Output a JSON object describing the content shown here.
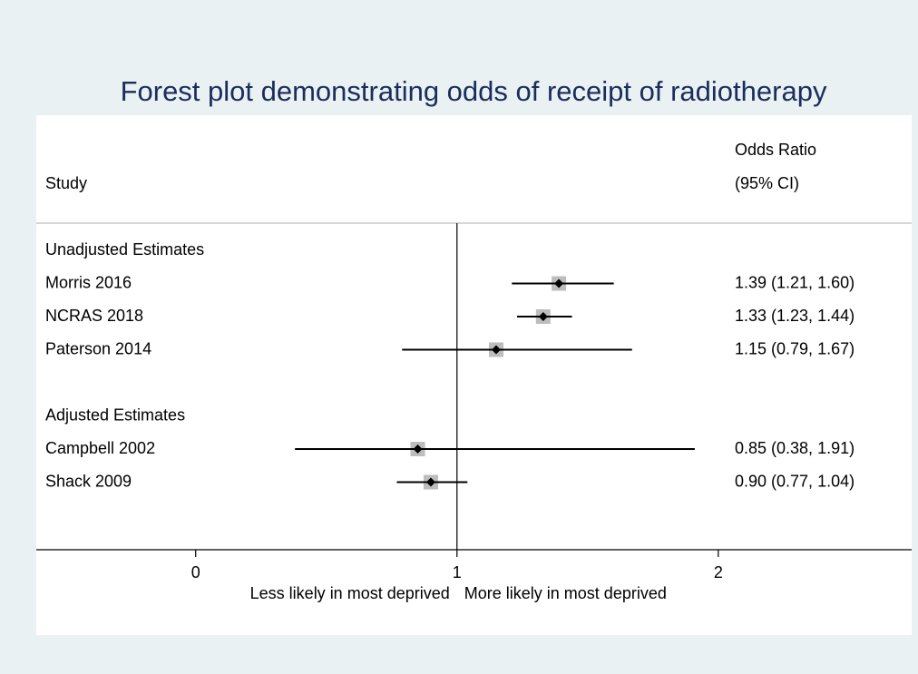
{
  "chart_data": {
    "type": "forest",
    "title": "Forest plot demonstrating odds of receipt of radiotherapy",
    "study_header": "Study",
    "estimate_header": [
      "Odds Ratio",
      "(95% CI)"
    ],
    "groups": [
      {
        "name": "Unadjusted Estimates",
        "studies": [
          {
            "name": "Morris 2016",
            "value": 1.39,
            "lower": 1.21,
            "upper": 1.6,
            "value_label": "1.39 (1.21, 1.60)"
          },
          {
            "name": "NCRAS 2018",
            "value": 1.33,
            "lower": 1.23,
            "upper": 1.44,
            "value_label": "1.33 (1.23, 1.44)"
          },
          {
            "name": "Paterson 2014",
            "value": 1.15,
            "lower": 0.79,
            "upper": 1.67,
            "value_label": "1.15 (0.79, 1.67)"
          }
        ]
      },
      {
        "name": "Adjusted Estimates",
        "studies": [
          {
            "name": "Campbell 2002",
            "value": 0.85,
            "lower": 0.38,
            "upper": 1.91,
            "value_label": "0.85 (0.38, 1.91)"
          },
          {
            "name": "Shack 2009",
            "value": 0.9,
            "lower": 0.77,
            "upper": 1.04,
            "value_label": "0.90 (0.77, 1.04)"
          }
        ]
      }
    ],
    "reference_line": 1,
    "xlim": [
      -0.61,
      2.74
    ],
    "xticks": [
      0,
      1,
      2
    ],
    "xlabel_left": "Less likely in most deprived",
    "xlabel_right": "More likely in most deprived",
    "box_color": "#bdbdbd",
    "line_color": "#000000"
  }
}
